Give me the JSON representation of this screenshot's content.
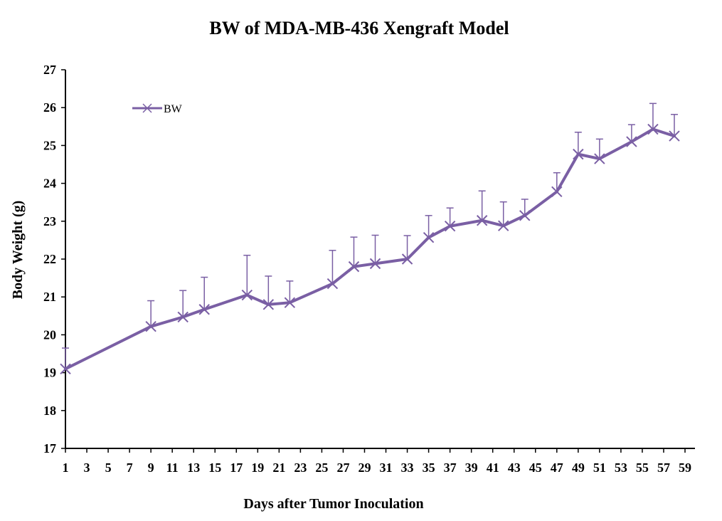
{
  "chart_data": {
    "type": "line",
    "title": "BW of MDA-MB-436 Xengraft Model",
    "xlabel": "Days after Tumor Inoculation",
    "ylabel": "Body Weight (g)",
    "xlim": [
      1,
      59
    ],
    "ylim": [
      17,
      27
    ],
    "x_ticks": [
      1,
      3,
      5,
      7,
      9,
      11,
      13,
      15,
      17,
      19,
      21,
      23,
      25,
      27,
      29,
      31,
      33,
      35,
      37,
      39,
      41,
      43,
      45,
      47,
      49,
      51,
      53,
      55,
      57,
      59
    ],
    "y_ticks": [
      17,
      18,
      19,
      20,
      21,
      22,
      23,
      24,
      25,
      26,
      27
    ],
    "legend_position": "top-left",
    "grid": false,
    "color": "#7a5fa4",
    "series": [
      {
        "name": "BW",
        "x": [
          1,
          9,
          12,
          14,
          18,
          20,
          22,
          26,
          28,
          30,
          33,
          35,
          37,
          40,
          42,
          44,
          47,
          49,
          51,
          54,
          56,
          58
        ],
        "y": [
          19.1,
          20.22,
          20.47,
          20.67,
          21.05,
          20.8,
          20.85,
          21.35,
          21.8,
          21.88,
          22.0,
          22.57,
          22.87,
          23.02,
          22.88,
          23.15,
          23.78,
          24.77,
          24.65,
          25.1,
          25.43,
          25.25
        ],
        "error_upper": [
          0.55,
          0.68,
          0.7,
          0.85,
          1.05,
          0.75,
          0.57,
          0.88,
          0.78,
          0.75,
          0.62,
          0.58,
          0.48,
          0.78,
          0.63,
          0.43,
          0.5,
          0.58,
          0.52,
          0.45,
          0.68,
          0.57
        ]
      }
    ]
  }
}
